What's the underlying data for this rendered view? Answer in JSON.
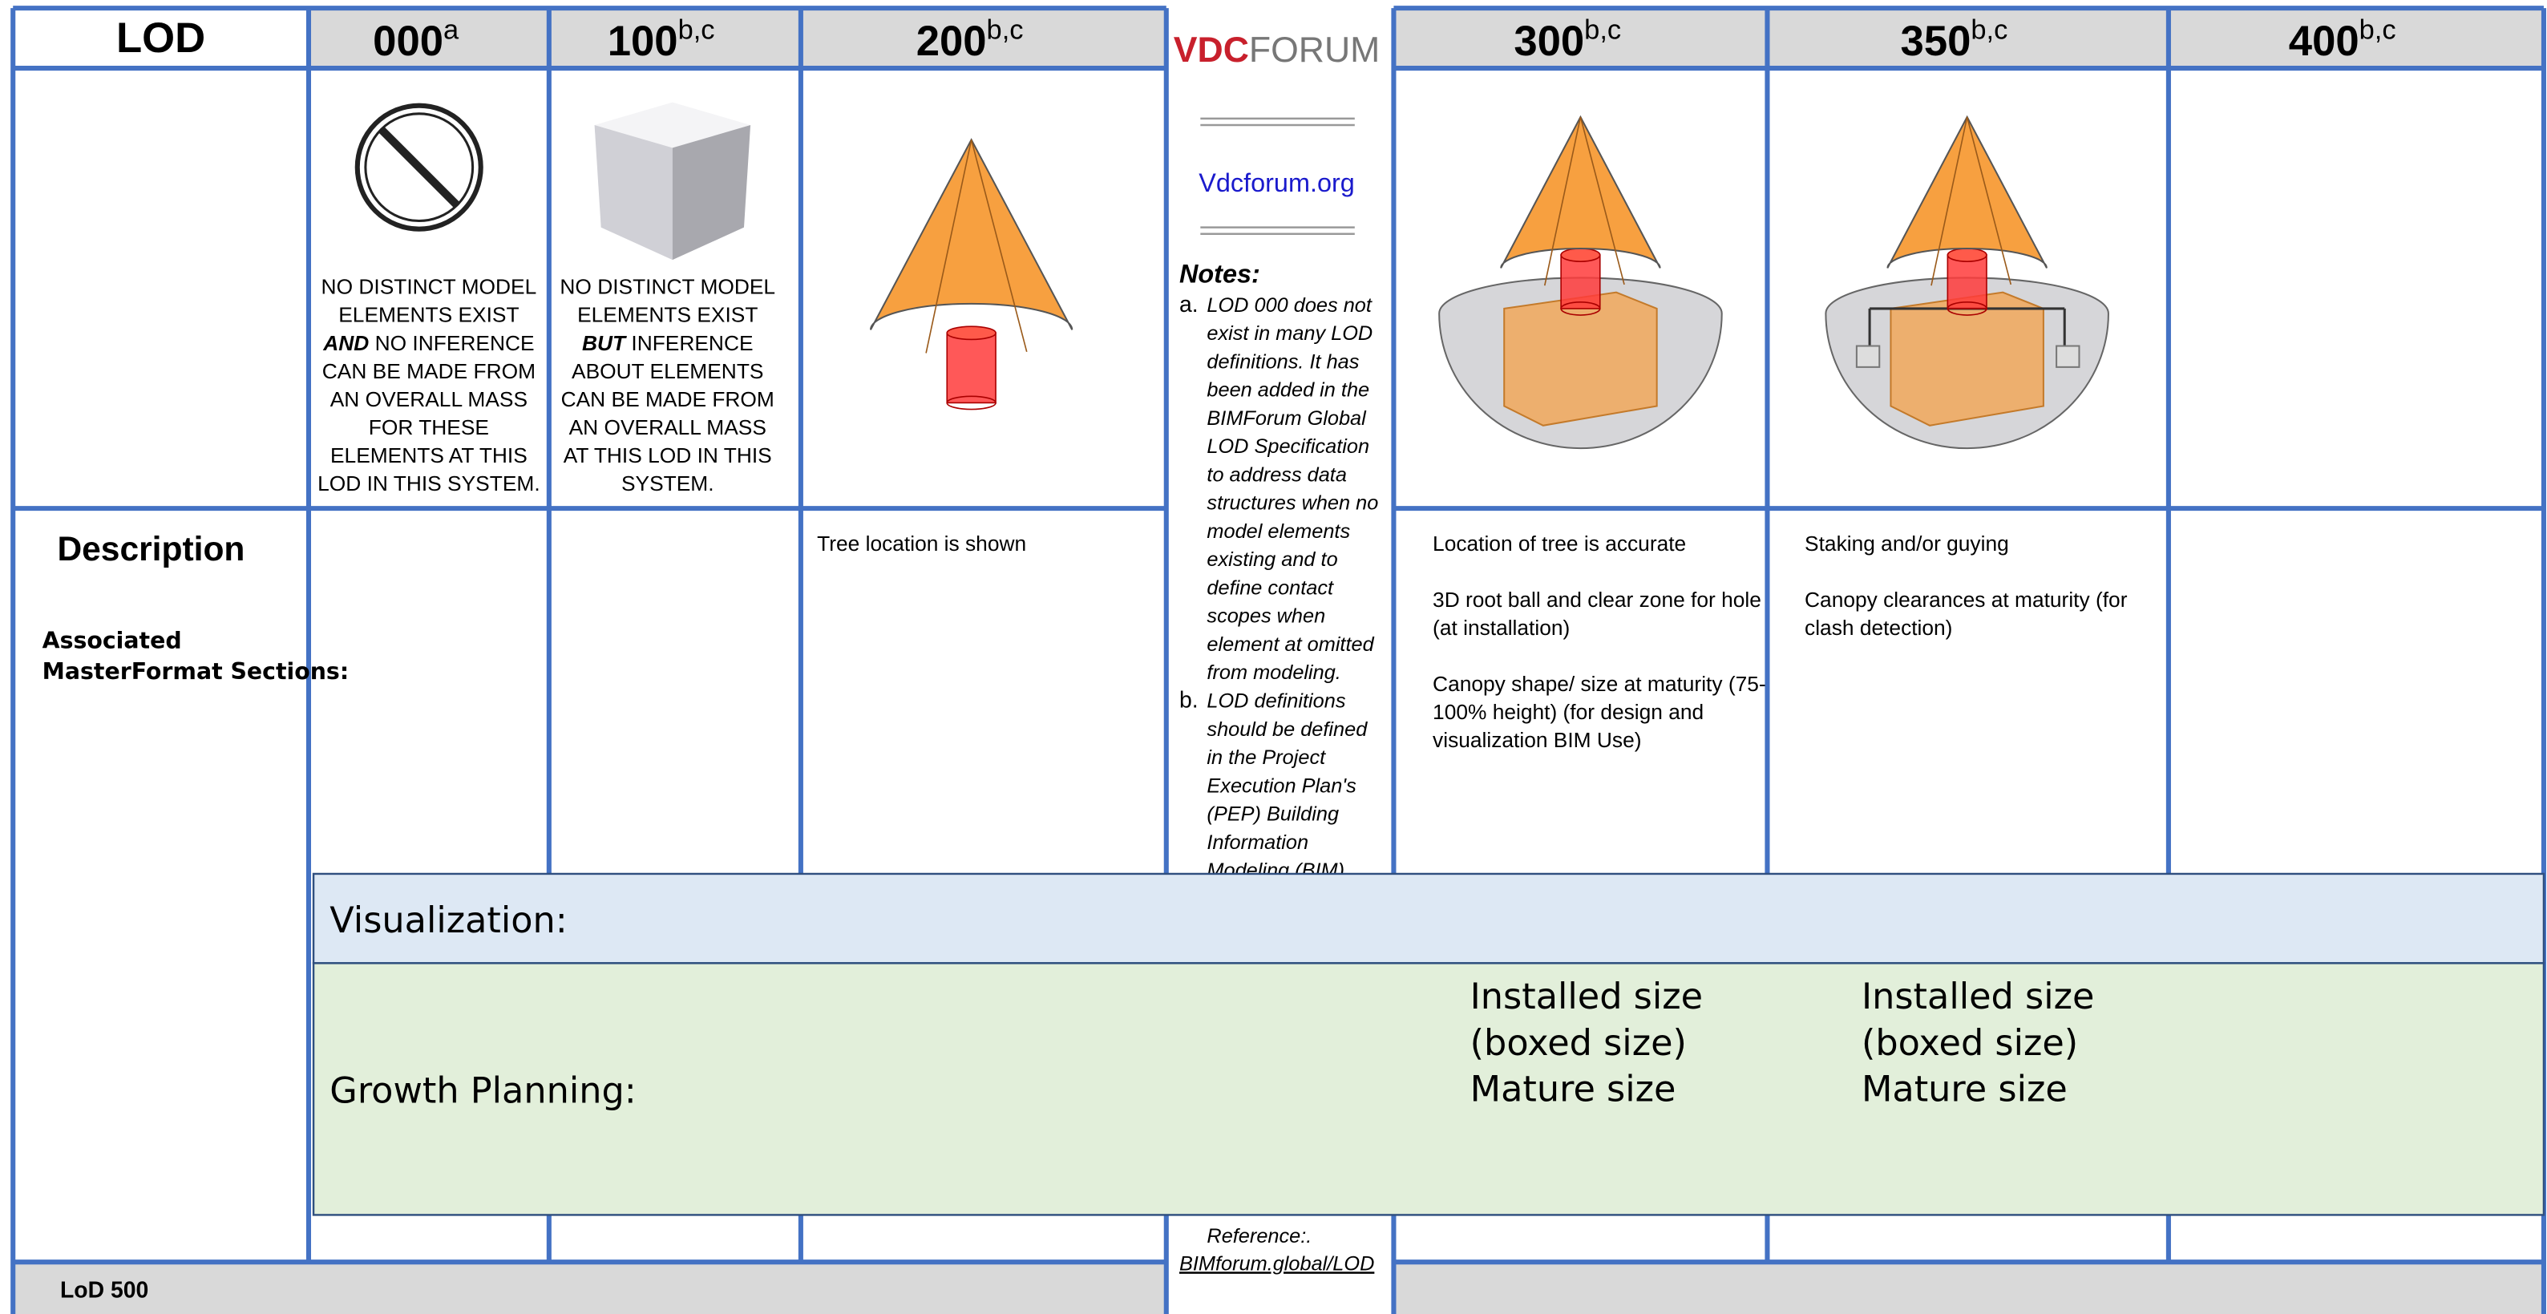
{
  "header": {
    "lod": "LOD",
    "logo": {
      "vdc": "VDC",
      "forum": "FORUM"
    },
    "site": "Vdcforum.org",
    "columns": [
      {
        "label": "000",
        "sup": "a"
      },
      {
        "label": "100",
        "sup": "b,c"
      },
      {
        "label": "200",
        "sup": "b,c"
      },
      {
        "label": "300",
        "sup": "b,c"
      },
      {
        "label": "350",
        "sup": "b,c"
      },
      {
        "label": "400",
        "sup": "b,c"
      }
    ]
  },
  "captions": [
    {
      "before": [
        "NO DISTINCT MODEL",
        "ELEMENTS EXIST"
      ],
      "emphasis": "AND",
      "after_emphasis": " NO INFERENCE",
      "rest": [
        "CAN BE MADE FROM",
        "AN OVERALL MASS",
        "FOR THESE",
        "ELEMENTS AT THIS",
        "LOD IN THIS SYSTEM."
      ]
    },
    {
      "before": [
        "NO DISTINCT MODEL",
        "ELEMENTS EXIST"
      ],
      "emphasis": "BUT",
      "after_emphasis": " INFERENCE",
      "rest": [
        "ABOUT ELEMENTS",
        "CAN BE MADE FROM",
        "AN OVERALL MASS",
        "AT THIS LOD IN THIS",
        "SYSTEM."
      ]
    }
  ],
  "left": {
    "description": "Description",
    "masterformat": [
      "Associated",
      "MasterFormat Sections:"
    ]
  },
  "descriptions": {
    "lod200": [
      [
        "Tree location is shown"
      ]
    ],
    "lod300": [
      [
        "Location of tree is accurate"
      ],
      [
        "3D root ball and clear zone for hole",
        "(at installation)"
      ],
      [
        "Canopy shape/ size at maturity (75-",
        "100% height)  (for design and",
        "visualization BIM Use)"
      ]
    ],
    "lod350": [
      [
        "Staking and/or guying"
      ],
      [
        "Canopy clearances at maturity (for",
        "clash detection)"
      ]
    ]
  },
  "notes": {
    "title": "Notes:",
    "a": {
      "marker": "a.",
      "lines": [
        "LOD 000 does not",
        "exist in many LOD",
        "definitions. It has",
        "been added in the",
        "BIMForum Global",
        "LOD Specification",
        "to address data",
        "structures when no",
        "model elements",
        "existing and to",
        "define contact",
        "scopes when",
        "element at omitted",
        "from modeling."
      ]
    },
    "b": {
      "marker": "b.",
      "lines": [
        "LOD definitions",
        "should be defined",
        "in the Project",
        "Execution Plan's",
        "(PEP) Building",
        "Information",
        "Modeling (BIM)"
      ]
    },
    "reference": "Reference:.",
    "link": "BIMforum.global/LOD"
  },
  "overlay": {
    "visualization": "Visualization:",
    "growth": "Growth Planning:",
    "lists": [
      [
        "Installed size",
        "(boxed size)",
        "Mature size"
      ],
      [
        "Installed size",
        "(boxed size)",
        "Mature size"
      ]
    ]
  },
  "footer": {
    "label": "LoD 500"
  }
}
